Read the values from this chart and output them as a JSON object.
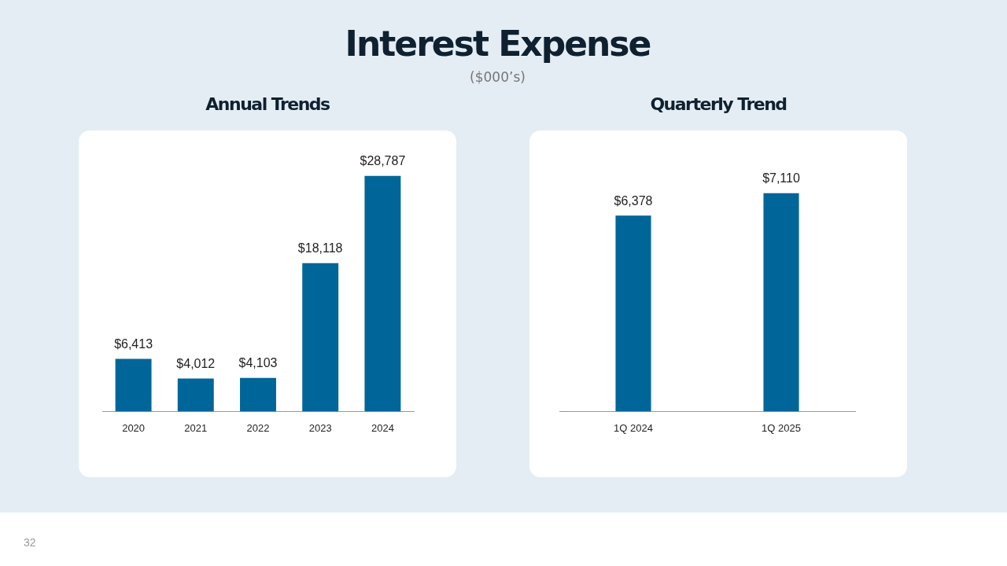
{
  "chart_data": [
    {
      "type": "other",
      "title": "Interest Expense",
      "subtitle": "($000’s)",
      "annotations": [
        "32"
      ]
    },
    {
      "type": "bar",
      "title": "Annual Trends",
      "categories": [
        "2020",
        "2021",
        "2022",
        "2023",
        "2024"
      ],
      "values": [
        6413,
        4012,
        4103,
        18118,
        28787
      ],
      "value_labels": [
        "$6,413",
        "$4,012",
        "$4,103",
        "$18,118",
        "$28,787"
      ],
      "color": "#006699",
      "grid": false,
      "legend": false,
      "tick_labels": "x"
    },
    {
      "type": "bar",
      "title": "Quarterly Trend",
      "categories": [
        "1Q 2024",
        "1Q 2025"
      ],
      "values": [
        6378,
        7110
      ],
      "value_labels": [
        "$6,378",
        "$7,110"
      ],
      "color": "#006699",
      "grid": false,
      "legend": false,
      "tick_labels": "x"
    }
  ]
}
